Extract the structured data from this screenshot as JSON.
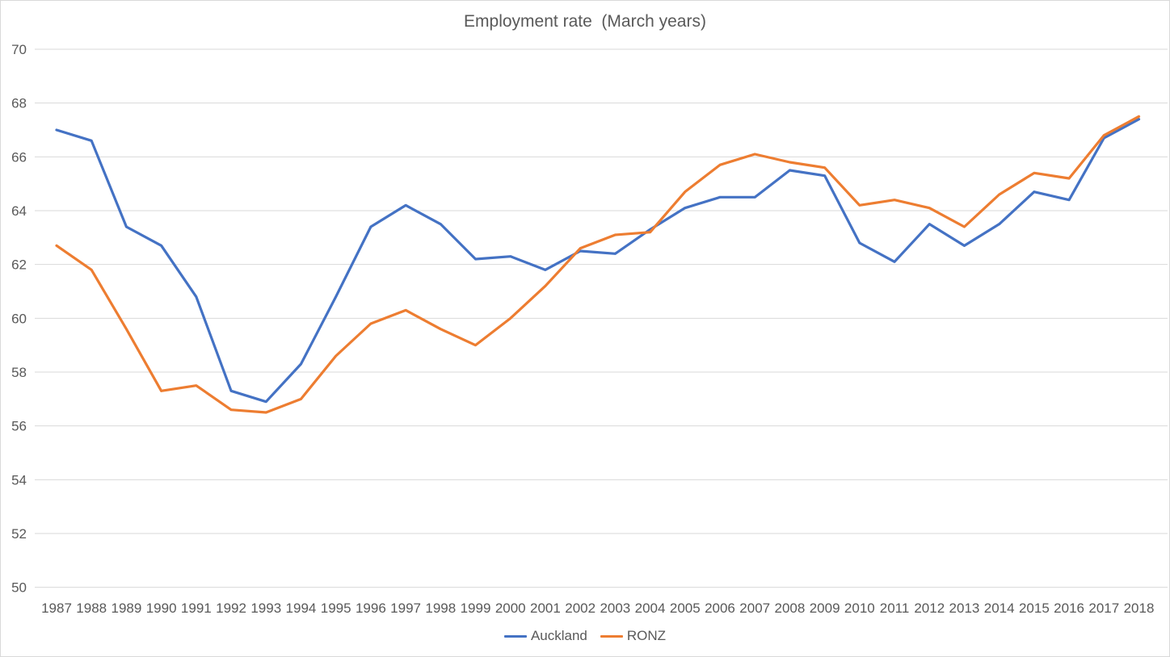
{
  "chart": {
    "title": "Employment rate  (March years)"
  },
  "chart_data": {
    "type": "line",
    "title": "Employment rate (March years)",
    "categories": [
      "1987",
      "1988",
      "1989",
      "1990",
      "1991",
      "1992",
      "1993",
      "1994",
      "1995",
      "1996",
      "1997",
      "1998",
      "1999",
      "2000",
      "2001",
      "2002",
      "2003",
      "2004",
      "2005",
      "2006",
      "2007",
      "2008",
      "2009",
      "2010",
      "2011",
      "2012",
      "2013",
      "2014",
      "2015",
      "2016",
      "2017",
      "2018"
    ],
    "series": [
      {
        "name": "Auckland",
        "color": "#4472C4",
        "values": [
          67.0,
          66.6,
          63.4,
          62.7,
          60.8,
          57.3,
          56.9,
          58.3,
          60.8,
          63.4,
          64.2,
          63.5,
          62.2,
          62.3,
          61.8,
          62.5,
          62.4,
          63.3,
          64.1,
          64.5,
          64.5,
          65.5,
          65.3,
          62.8,
          62.1,
          63.5,
          62.7,
          63.5,
          64.7,
          64.4,
          66.7,
          67.4
        ]
      },
      {
        "name": "RONZ",
        "color": "#ED7D31",
        "values": [
          62.7,
          61.8,
          59.6,
          57.3,
          57.5,
          56.6,
          56.5,
          57.0,
          58.6,
          59.8,
          60.3,
          59.6,
          59.0,
          60.0,
          61.2,
          62.6,
          63.1,
          63.2,
          64.7,
          65.7,
          66.1,
          65.8,
          65.6,
          64.2,
          64.4,
          64.1,
          63.4,
          64.6,
          65.4,
          65.2,
          66.8,
          67.5
        ]
      }
    ],
    "ylim": [
      50,
      70
    ],
    "ytick_step": 2,
    "grid": true,
    "legend_position": "bottom"
  },
  "colors": {
    "text": "#595959",
    "gridline": "#D9D9D9",
    "background": "#FFFFFF",
    "border": "#D9D9D9"
  }
}
